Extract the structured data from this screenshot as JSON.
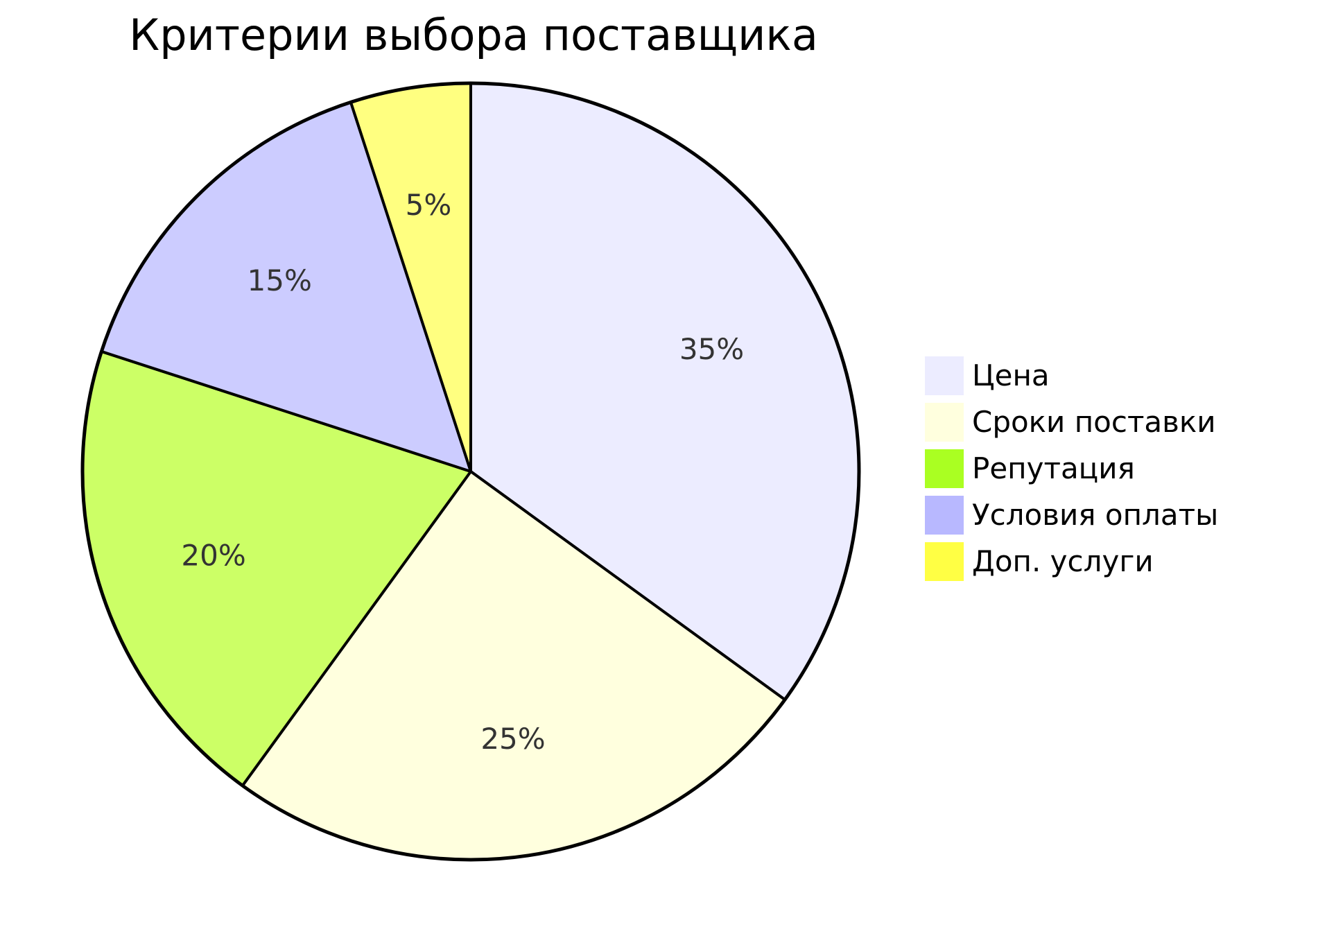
{
  "chart_data": {
    "type": "pie",
    "title": "Критерии выбора поставщика",
    "categories": [
      "Цена",
      "Сроки поставки",
      "Репутация",
      "Условия оплаты",
      "Доп. услуги"
    ],
    "values": [
      35,
      25,
      20,
      15,
      5
    ],
    "labels": [
      "35%",
      "25%",
      "20%",
      "15%",
      "5%"
    ],
    "colors": [
      "#ececff",
      "#ffffde",
      "#ccff66",
      "#ccccff",
      "#ffff80"
    ],
    "legend_colors": [
      "#ececff",
      "#ffffde",
      "#aaff22",
      "#b8b8ff",
      "#ffff44"
    ],
    "legend_position": "right",
    "start_angle": "12 o'clock",
    "direction": "clockwise"
  }
}
